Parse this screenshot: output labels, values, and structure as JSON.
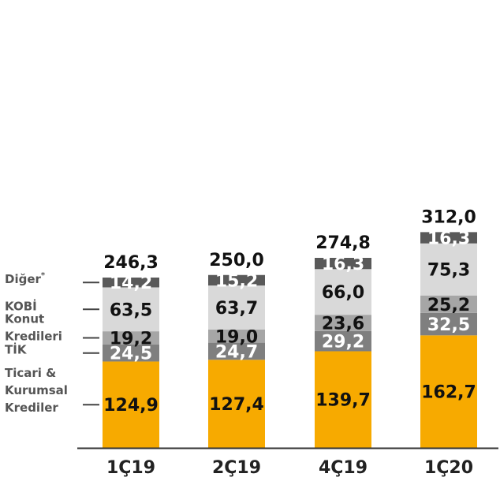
{
  "chart_data": {
    "type": "bar",
    "stacked": true,
    "categories": [
      "1Ç19",
      "2Ç19",
      "4Ç19",
      "1Ç20"
    ],
    "series": [
      {
        "name": "Ticari & Kurumsal Krediler",
        "values": [
          124.9,
          127.4,
          139.7,
          162.7
        ],
        "labels": [
          "124,9",
          "127,4",
          "139,7",
          "162,7"
        ],
        "color": "#F7AA00",
        "text_color": "#111111"
      },
      {
        "name": "TİK",
        "values": [
          24.5,
          24.7,
          29.2,
          32.5
        ],
        "labels": [
          "24,5",
          "24,7",
          "29,2",
          "32,5"
        ],
        "color": "#7F7F7F",
        "text_color": "#ffffff"
      },
      {
        "name": "Konut Kredileri",
        "values": [
          19.2,
          19.0,
          23.6,
          25.2
        ],
        "labels": [
          "19,2",
          "19,0",
          "23,6",
          "25,2"
        ],
        "color": "#A6A6A6",
        "text_color": "#111111"
      },
      {
        "name": "KOBİ",
        "values": [
          63.5,
          63.7,
          66.0,
          75.3
        ],
        "labels": [
          "63,5",
          "63,7",
          "66,0",
          "75,3"
        ],
        "color": "#D9D9D9",
        "text_color": "#111111"
      },
      {
        "name": "Diğer",
        "values": [
          14.2,
          15.2,
          16.3,
          16.3
        ],
        "labels": [
          "14,2",
          "15,2",
          "16,3",
          "16,3"
        ],
        "color": "#595959",
        "text_color": "#ffffff"
      }
    ],
    "totals": [
      246.3,
      250.0,
      274.8,
      312.0
    ],
    "total_labels": [
      "246,3",
      "250,0",
      "274,8",
      "312,0"
    ],
    "legend": [
      {
        "lines": [
          "Diğer"
        ],
        "superscript": "*"
      },
      {
        "lines": [
          "KOBİ"
        ],
        "superscript": ""
      },
      {
        "lines": [
          "Konut",
          "Kredileri"
        ],
        "superscript": ""
      },
      {
        "lines": [
          "TİK"
        ],
        "superscript": ""
      },
      {
        "lines": [
          "Ticari &",
          "Kurumsal",
          "Krediler"
        ],
        "superscript": ""
      }
    ],
    "legend_placement": "left",
    "ylim": [
      0,
      320
    ],
    "grid": false
  }
}
